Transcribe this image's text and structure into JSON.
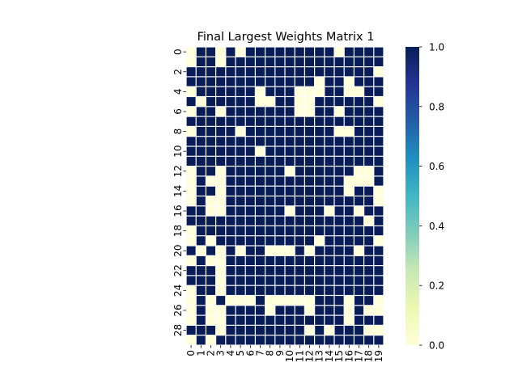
{
  "chart_data": {
    "type": "heatmap",
    "title": "Final Largest Weights Matrix 1",
    "xlabel": "",
    "ylabel": "",
    "n_rows": 30,
    "n_cols": 20,
    "x_tick_labels": [
      "0",
      "1",
      "2",
      "3",
      "4",
      "5",
      "6",
      "7",
      "8",
      "9",
      "10",
      "11",
      "12",
      "13",
      "14",
      "15",
      "16",
      "17",
      "18",
      "19"
    ],
    "y_tick_labels": [
      "0",
      "2",
      "4",
      "6",
      "8",
      "10",
      "12",
      "14",
      "16",
      "18",
      "20",
      "22",
      "24",
      "26",
      "28"
    ],
    "y_tick_rows": [
      0,
      2,
      4,
      6,
      8,
      10,
      12,
      14,
      16,
      18,
      20,
      22,
      24,
      26,
      28
    ],
    "colorbar": {
      "min": 0.0,
      "max": 1.0,
      "ticks": [
        0.0,
        0.2,
        0.4,
        0.6,
        0.8,
        1.0
      ],
      "tick_labels": [
        "0.0",
        "0.2",
        "0.4",
        "0.6",
        "0.8",
        "1.0"
      ],
      "colormap": "YlGnBu"
    },
    "colors": {
      "low": "#ffffd9",
      "high": "#081d58",
      "cell_gap": "#ffffff"
    },
    "values": [
      [
        0,
        1,
        1,
        0,
        1,
        0,
        1,
        1,
        1,
        1,
        1,
        1,
        1,
        1,
        1,
        0,
        1,
        1,
        1,
        1
      ],
      [
        0,
        1,
        1,
        0,
        1,
        1,
        1,
        1,
        1,
        1,
        1,
        1,
        1,
        1,
        1,
        1,
        1,
        1,
        1,
        1
      ],
      [
        1,
        1,
        1,
        1,
        1,
        1,
        1,
        1,
        1,
        1,
        1,
        1,
        1,
        1,
        1,
        1,
        1,
        1,
        1,
        0
      ],
      [
        1,
        1,
        1,
        1,
        1,
        1,
        1,
        1,
        1,
        1,
        1,
        1,
        1,
        0,
        1,
        1,
        0,
        1,
        1,
        1
      ],
      [
        0,
        1,
        1,
        1,
        1,
        1,
        1,
        0,
        1,
        1,
        1,
        0,
        0,
        0,
        1,
        1,
        0,
        0,
        1,
        1
      ],
      [
        1,
        0,
        1,
        1,
        1,
        1,
        1,
        0,
        0,
        1,
        1,
        0,
        0,
        1,
        1,
        1,
        1,
        1,
        1,
        0
      ],
      [
        0,
        1,
        1,
        0,
        1,
        1,
        1,
        1,
        1,
        1,
        1,
        0,
        0,
        1,
        1,
        0,
        1,
        1,
        1,
        1
      ],
      [
        1,
        1,
        1,
        1,
        1,
        1,
        1,
        1,
        1,
        1,
        1,
        1,
        1,
        1,
        1,
        1,
        1,
        1,
        1,
        1
      ],
      [
        0,
        1,
        1,
        1,
        1,
        0,
        1,
        1,
        1,
        1,
        1,
        1,
        1,
        1,
        1,
        0,
        0,
        1,
        1,
        1
      ],
      [
        1,
        1,
        1,
        1,
        1,
        1,
        1,
        1,
        1,
        1,
        1,
        1,
        1,
        1,
        1,
        1,
        1,
        1,
        1,
        1
      ],
      [
        1,
        1,
        1,
        1,
        1,
        1,
        1,
        0,
        1,
        1,
        1,
        1,
        1,
        1,
        1,
        1,
        1,
        1,
        1,
        1
      ],
      [
        1,
        1,
        1,
        1,
        1,
        1,
        1,
        1,
        1,
        1,
        1,
        1,
        1,
        1,
        1,
        1,
        1,
        1,
        1,
        1
      ],
      [
        0,
        1,
        1,
        0,
        1,
        1,
        1,
        1,
        1,
        1,
        0,
        1,
        1,
        1,
        1,
        1,
        1,
        0,
        0,
        1
      ],
      [
        0,
        1,
        0,
        0,
        1,
        1,
        1,
        1,
        1,
        1,
        1,
        1,
        1,
        1,
        1,
        1,
        0,
        0,
        0,
        1
      ],
      [
        0,
        1,
        1,
        0,
        1,
        1,
        1,
        1,
        1,
        1,
        1,
        1,
        1,
        1,
        1,
        1,
        0,
        1,
        1,
        0
      ],
      [
        0,
        1,
        0,
        0,
        1,
        1,
        1,
        1,
        1,
        1,
        1,
        1,
        1,
        1,
        1,
        1,
        1,
        1,
        1,
        0
      ],
      [
        1,
        1,
        0,
        0,
        1,
        1,
        1,
        1,
        1,
        1,
        0,
        1,
        1,
        1,
        0,
        1,
        1,
        0,
        1,
        1
      ],
      [
        1,
        1,
        1,
        1,
        1,
        1,
        1,
        1,
        1,
        1,
        1,
        1,
        1,
        1,
        1,
        1,
        1,
        1,
        0,
        1
      ],
      [
        0,
        1,
        1,
        1,
        1,
        1,
        1,
        1,
        1,
        1,
        1,
        1,
        1,
        1,
        1,
        1,
        1,
        1,
        1,
        1
      ],
      [
        0,
        1,
        0,
        1,
        1,
        1,
        1,
        1,
        1,
        1,
        1,
        1,
        1,
        0,
        1,
        1,
        1,
        1,
        1,
        0
      ],
      [
        1,
        0,
        1,
        0,
        1,
        0,
        1,
        1,
        0,
        0,
        0,
        1,
        0,
        1,
        1,
        1,
        1,
        0,
        1,
        1
      ],
      [
        0,
        1,
        0,
        0,
        1,
        1,
        1,
        1,
        1,
        1,
        1,
        1,
        1,
        1,
        1,
        1,
        1,
        1,
        1,
        1
      ],
      [
        1,
        1,
        1,
        0,
        1,
        1,
        1,
        1,
        1,
        1,
        1,
        1,
        1,
        1,
        1,
        1,
        1,
        1,
        1,
        1
      ],
      [
        1,
        1,
        1,
        0,
        1,
        1,
        1,
        1,
        1,
        1,
        1,
        1,
        1,
        1,
        1,
        1,
        1,
        1,
        1,
        1
      ],
      [
        0,
        1,
        1,
        0,
        1,
        1,
        1,
        1,
        1,
        1,
        1,
        1,
        1,
        1,
        1,
        1,
        1,
        1,
        1,
        1
      ],
      [
        0,
        1,
        0,
        1,
        0,
        0,
        0,
        1,
        0,
        0,
        0,
        0,
        0,
        1,
        1,
        1,
        0,
        1,
        1,
        0
      ],
      [
        0,
        1,
        0,
        0,
        1,
        1,
        1,
        1,
        0,
        1,
        1,
        1,
        0,
        1,
        1,
        1,
        0,
        1,
        0,
        0
      ],
      [
        0,
        1,
        0,
        0,
        1,
        1,
        1,
        1,
        1,
        1,
        1,
        1,
        1,
        1,
        1,
        1,
        0,
        1,
        1,
        1
      ],
      [
        1,
        1,
        1,
        0,
        1,
        1,
        1,
        1,
        1,
        1,
        1,
        1,
        0,
        1,
        0,
        1,
        1,
        1,
        0,
        0
      ],
      [
        0,
        1,
        0,
        1,
        1,
        1,
        1,
        1,
        1,
        1,
        1,
        1,
        1,
        1,
        1,
        1,
        1,
        1,
        1,
        1
      ]
    ]
  }
}
